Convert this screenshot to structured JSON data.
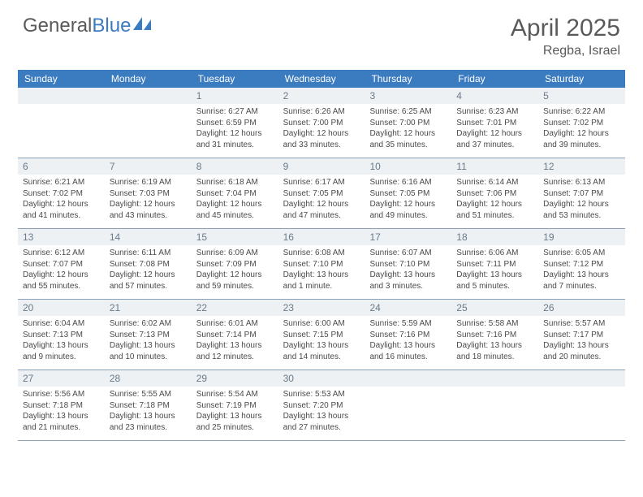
{
  "brand": {
    "part1": "General",
    "part2": "Blue"
  },
  "title": "April 2025",
  "location": "Regba, Israel",
  "colors": {
    "header_bg": "#3b7bbf",
    "header_text": "#ffffff",
    "daynum_bg": "#eef1f4",
    "daynum_text": "#6a7a8a",
    "border": "#88a0b8",
    "body_text": "#4a4a4a",
    "page_bg": "#ffffff"
  },
  "weekdays": [
    "Sunday",
    "Monday",
    "Tuesday",
    "Wednesday",
    "Thursday",
    "Friday",
    "Saturday"
  ],
  "grid": [
    [
      {
        "day": "",
        "sunrise": "",
        "sunset": "",
        "daylight": ""
      },
      {
        "day": "",
        "sunrise": "",
        "sunset": "",
        "daylight": ""
      },
      {
        "day": "1",
        "sunrise": "Sunrise: 6:27 AM",
        "sunset": "Sunset: 6:59 PM",
        "daylight": "Daylight: 12 hours and 31 minutes."
      },
      {
        "day": "2",
        "sunrise": "Sunrise: 6:26 AM",
        "sunset": "Sunset: 7:00 PM",
        "daylight": "Daylight: 12 hours and 33 minutes."
      },
      {
        "day": "3",
        "sunrise": "Sunrise: 6:25 AM",
        "sunset": "Sunset: 7:00 PM",
        "daylight": "Daylight: 12 hours and 35 minutes."
      },
      {
        "day": "4",
        "sunrise": "Sunrise: 6:23 AM",
        "sunset": "Sunset: 7:01 PM",
        "daylight": "Daylight: 12 hours and 37 minutes."
      },
      {
        "day": "5",
        "sunrise": "Sunrise: 6:22 AM",
        "sunset": "Sunset: 7:02 PM",
        "daylight": "Daylight: 12 hours and 39 minutes."
      }
    ],
    [
      {
        "day": "6",
        "sunrise": "Sunrise: 6:21 AM",
        "sunset": "Sunset: 7:02 PM",
        "daylight": "Daylight: 12 hours and 41 minutes."
      },
      {
        "day": "7",
        "sunrise": "Sunrise: 6:19 AM",
        "sunset": "Sunset: 7:03 PM",
        "daylight": "Daylight: 12 hours and 43 minutes."
      },
      {
        "day": "8",
        "sunrise": "Sunrise: 6:18 AM",
        "sunset": "Sunset: 7:04 PM",
        "daylight": "Daylight: 12 hours and 45 minutes."
      },
      {
        "day": "9",
        "sunrise": "Sunrise: 6:17 AM",
        "sunset": "Sunset: 7:05 PM",
        "daylight": "Daylight: 12 hours and 47 minutes."
      },
      {
        "day": "10",
        "sunrise": "Sunrise: 6:16 AM",
        "sunset": "Sunset: 7:05 PM",
        "daylight": "Daylight: 12 hours and 49 minutes."
      },
      {
        "day": "11",
        "sunrise": "Sunrise: 6:14 AM",
        "sunset": "Sunset: 7:06 PM",
        "daylight": "Daylight: 12 hours and 51 minutes."
      },
      {
        "day": "12",
        "sunrise": "Sunrise: 6:13 AM",
        "sunset": "Sunset: 7:07 PM",
        "daylight": "Daylight: 12 hours and 53 minutes."
      }
    ],
    [
      {
        "day": "13",
        "sunrise": "Sunrise: 6:12 AM",
        "sunset": "Sunset: 7:07 PM",
        "daylight": "Daylight: 12 hours and 55 minutes."
      },
      {
        "day": "14",
        "sunrise": "Sunrise: 6:11 AM",
        "sunset": "Sunset: 7:08 PM",
        "daylight": "Daylight: 12 hours and 57 minutes."
      },
      {
        "day": "15",
        "sunrise": "Sunrise: 6:09 AM",
        "sunset": "Sunset: 7:09 PM",
        "daylight": "Daylight: 12 hours and 59 minutes."
      },
      {
        "day": "16",
        "sunrise": "Sunrise: 6:08 AM",
        "sunset": "Sunset: 7:10 PM",
        "daylight": "Daylight: 13 hours and 1 minute."
      },
      {
        "day": "17",
        "sunrise": "Sunrise: 6:07 AM",
        "sunset": "Sunset: 7:10 PM",
        "daylight": "Daylight: 13 hours and 3 minutes."
      },
      {
        "day": "18",
        "sunrise": "Sunrise: 6:06 AM",
        "sunset": "Sunset: 7:11 PM",
        "daylight": "Daylight: 13 hours and 5 minutes."
      },
      {
        "day": "19",
        "sunrise": "Sunrise: 6:05 AM",
        "sunset": "Sunset: 7:12 PM",
        "daylight": "Daylight: 13 hours and 7 minutes."
      }
    ],
    [
      {
        "day": "20",
        "sunrise": "Sunrise: 6:04 AM",
        "sunset": "Sunset: 7:13 PM",
        "daylight": "Daylight: 13 hours and 9 minutes."
      },
      {
        "day": "21",
        "sunrise": "Sunrise: 6:02 AM",
        "sunset": "Sunset: 7:13 PM",
        "daylight": "Daylight: 13 hours and 10 minutes."
      },
      {
        "day": "22",
        "sunrise": "Sunrise: 6:01 AM",
        "sunset": "Sunset: 7:14 PM",
        "daylight": "Daylight: 13 hours and 12 minutes."
      },
      {
        "day": "23",
        "sunrise": "Sunrise: 6:00 AM",
        "sunset": "Sunset: 7:15 PM",
        "daylight": "Daylight: 13 hours and 14 minutes."
      },
      {
        "day": "24",
        "sunrise": "Sunrise: 5:59 AM",
        "sunset": "Sunset: 7:16 PM",
        "daylight": "Daylight: 13 hours and 16 minutes."
      },
      {
        "day": "25",
        "sunrise": "Sunrise: 5:58 AM",
        "sunset": "Sunset: 7:16 PM",
        "daylight": "Daylight: 13 hours and 18 minutes."
      },
      {
        "day": "26",
        "sunrise": "Sunrise: 5:57 AM",
        "sunset": "Sunset: 7:17 PM",
        "daylight": "Daylight: 13 hours and 20 minutes."
      }
    ],
    [
      {
        "day": "27",
        "sunrise": "Sunrise: 5:56 AM",
        "sunset": "Sunset: 7:18 PM",
        "daylight": "Daylight: 13 hours and 21 minutes."
      },
      {
        "day": "28",
        "sunrise": "Sunrise: 5:55 AM",
        "sunset": "Sunset: 7:18 PM",
        "daylight": "Daylight: 13 hours and 23 minutes."
      },
      {
        "day": "29",
        "sunrise": "Sunrise: 5:54 AM",
        "sunset": "Sunset: 7:19 PM",
        "daylight": "Daylight: 13 hours and 25 minutes."
      },
      {
        "day": "30",
        "sunrise": "Sunrise: 5:53 AM",
        "sunset": "Sunset: 7:20 PM",
        "daylight": "Daylight: 13 hours and 27 minutes."
      },
      {
        "day": "",
        "sunrise": "",
        "sunset": "",
        "daylight": ""
      },
      {
        "day": "",
        "sunrise": "",
        "sunset": "",
        "daylight": ""
      },
      {
        "day": "",
        "sunrise": "",
        "sunset": "",
        "daylight": ""
      }
    ]
  ]
}
